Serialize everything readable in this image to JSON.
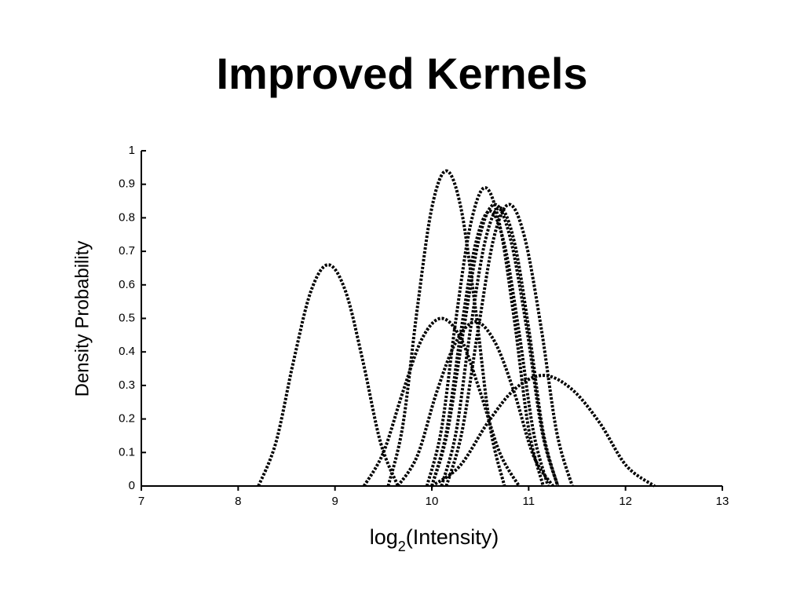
{
  "slide_title": "Improved Kernels",
  "chart_data": {
    "type": "line",
    "y_label": "Density Probability",
    "x_label": {
      "base": "log",
      "subscript": "2",
      "rest": "(Intensity)"
    },
    "xlim": [
      7,
      13
    ],
    "xticks": [
      7,
      8,
      9,
      10,
      11,
      12,
      13
    ],
    "ylim": [
      0,
      1
    ],
    "yticks": [
      0,
      0.1,
      0.2,
      0.3,
      0.4,
      0.5,
      0.6,
      0.7,
      0.8,
      0.9,
      1
    ],
    "line_style": "dotted",
    "series": [
      {
        "color": "#000000",
        "x": [
          8.21,
          8.39,
          8.57,
          8.75,
          8.93,
          9.11,
          9.29,
          9.47,
          9.65
        ],
        "values": [
          0,
          0.13,
          0.37,
          0.58,
          0.66,
          0.58,
          0.37,
          0.13,
          0
        ]
      },
      {
        "color": "#000000",
        "x": [
          9.55,
          9.7,
          9.85,
          10.0,
          10.15,
          10.3,
          10.45,
          10.6,
          10.75
        ],
        "values": [
          0,
          0.18,
          0.53,
          0.83,
          0.94,
          0.83,
          0.53,
          0.18,
          0
        ]
      },
      {
        "color": "#000000",
        "x": [
          9.95,
          10.1,
          10.25,
          10.4,
          10.55,
          10.7,
          10.85,
          11.0,
          11.15
        ],
        "values": [
          0,
          0.17,
          0.5,
          0.78,
          0.89,
          0.78,
          0.5,
          0.17,
          0
        ]
      },
      {
        "color": "#000000",
        "x": [
          9.3,
          9.5,
          9.7,
          9.9,
          10.1,
          10.3,
          10.5,
          10.7,
          10.9
        ],
        "values": [
          0,
          0.1,
          0.28,
          0.44,
          0.5,
          0.44,
          0.28,
          0.1,
          0
        ]
      },
      {
        "color": "#000000",
        "x": [
          9.65,
          9.85,
          10.05,
          10.25,
          10.45,
          10.65,
          10.85,
          11.05,
          11.25
        ],
        "values": [
          0,
          0.09,
          0.28,
          0.43,
          0.49,
          0.43,
          0.28,
          0.09,
          0
        ]
      },
      {
        "color": "#000000",
        "x": [
          10.0,
          10.29,
          10.58,
          10.86,
          11.15,
          11.44,
          11.73,
          12.01,
          12.3
        ],
        "values": [
          0,
          0.06,
          0.19,
          0.29,
          0.33,
          0.29,
          0.19,
          0.06,
          0
        ]
      },
      {
        "color": "#000000",
        "x": [
          10.0,
          10.16,
          10.33,
          10.49,
          10.65,
          10.81,
          10.98,
          11.14,
          11.3
        ],
        "values": [
          0,
          0.16,
          0.47,
          0.74,
          0.84,
          0.74,
          0.47,
          0.16,
          0
        ]
      },
      {
        "color": "#000000",
        "x": [
          10.15,
          10.31,
          10.48,
          10.64,
          10.8,
          10.96,
          11.13,
          11.29,
          11.45
        ],
        "values": [
          0,
          0.16,
          0.47,
          0.74,
          0.84,
          0.74,
          0.47,
          0.16,
          0
        ]
      },
      {
        "color": "#000000",
        "x": [
          10.1,
          10.25,
          10.4,
          10.55,
          10.7,
          10.85,
          11.0,
          11.15,
          11.3
        ],
        "values": [
          0,
          0.16,
          0.47,
          0.73,
          0.83,
          0.73,
          0.47,
          0.16,
          0
        ]
      },
      {
        "color": "#000000",
        "x": [
          10.0,
          10.15,
          10.3,
          10.45,
          10.6,
          10.75,
          10.9,
          11.05,
          11.2
        ],
        "values": [
          0,
          0.16,
          0.46,
          0.72,
          0.82,
          0.72,
          0.46,
          0.16,
          0
        ]
      }
    ]
  }
}
